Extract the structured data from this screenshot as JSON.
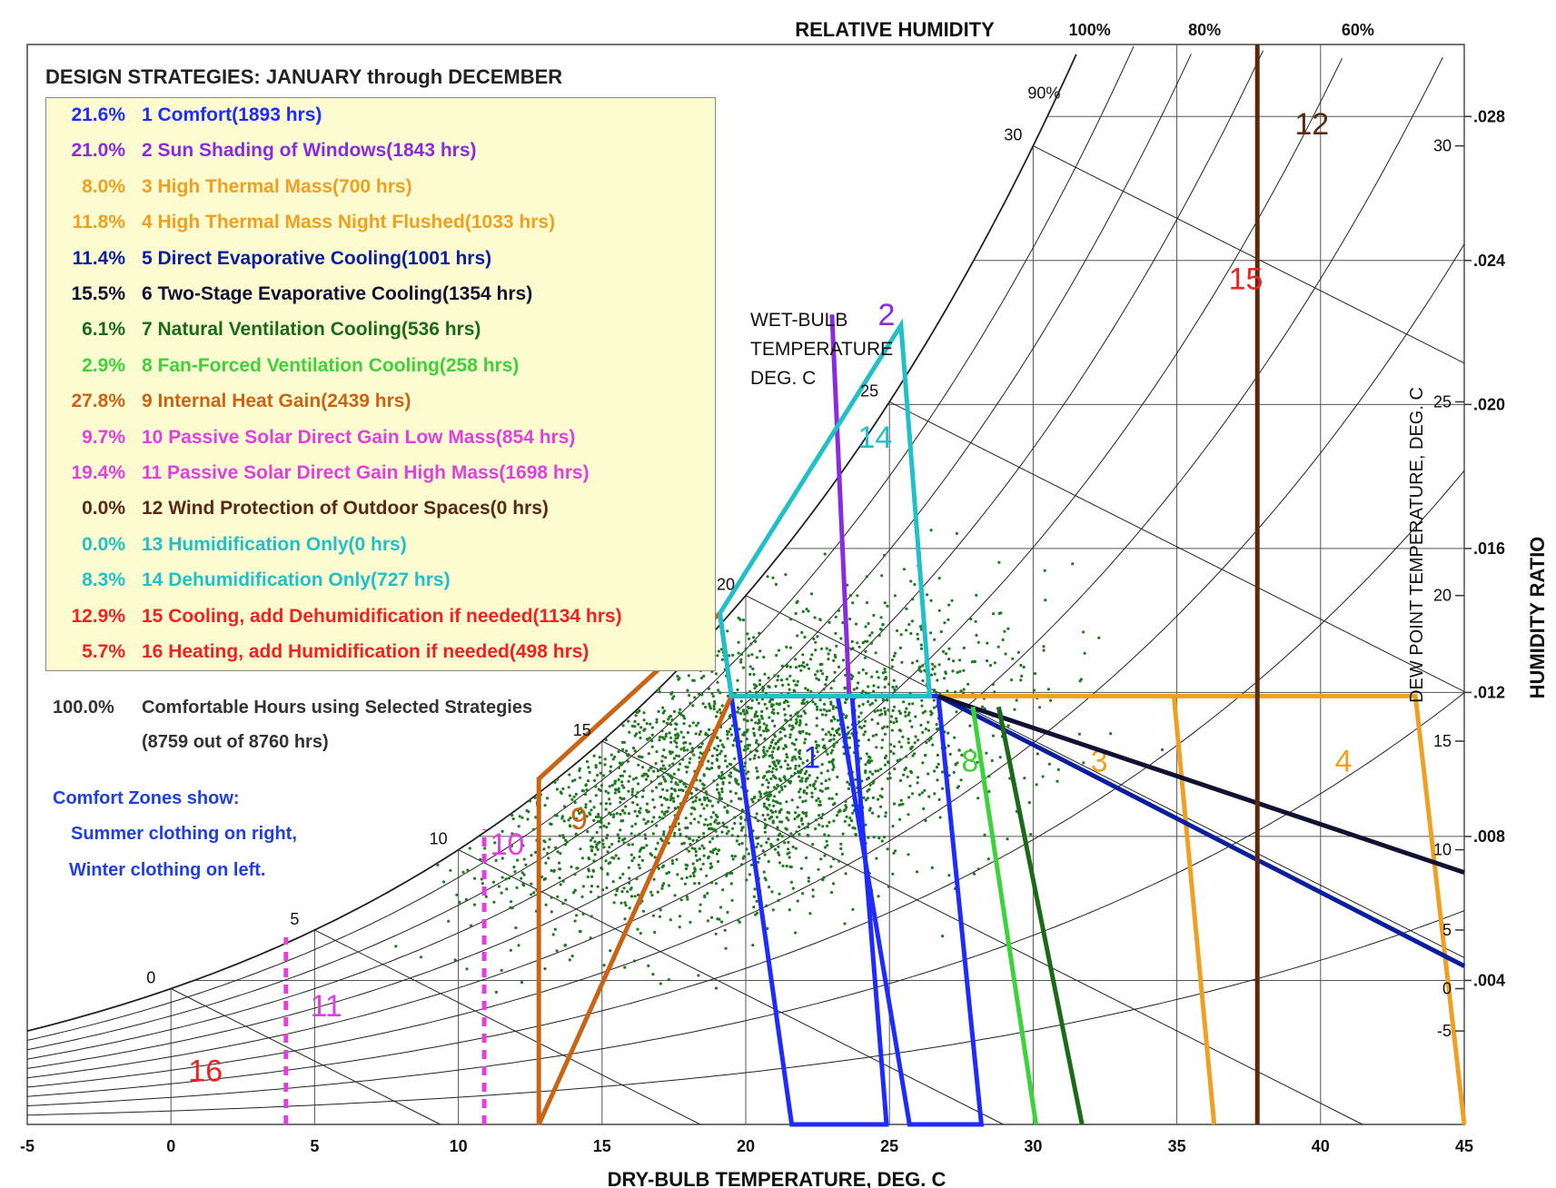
{
  "chart_data": {
    "type": "scatter",
    "subtype": "psychrometric-chart",
    "title": "DESIGN STRATEGIES:  JANUARY through DECEMBER",
    "xlabel": "DRY-BULB TEMPERATURE, DEG. C",
    "ylabel": "HUMIDITY RATIO",
    "y2label": "DEW POINT TEMPERATURE, DEG. C",
    "rh_label": "RELATIVE HUMIDITY",
    "wb_label_lines": [
      "WET-BULB",
      "TEMPERATURE",
      "DEG. C"
    ],
    "xlim": [
      -5,
      45
    ],
    "ylim": [
      0,
      0.03
    ],
    "x_ticks": [
      "-5",
      "0",
      "5",
      "10",
      "15",
      "20",
      "25",
      "30",
      "35",
      "40",
      "45"
    ],
    "y_ticks": [
      {
        "value": 0.004,
        "label": ".004"
      },
      {
        "value": 0.008,
        "label": ".008"
      },
      {
        "value": 0.012,
        "label": ".012"
      },
      {
        "value": 0.016,
        "label": ".016"
      },
      {
        "value": 0.02,
        "label": ".020"
      },
      {
        "value": 0.024,
        "label": ".024"
      },
      {
        "value": 0.028,
        "label": ".028"
      }
    ],
    "dew_point_ticks": [
      {
        "value": -5,
        "label": "-5"
      },
      {
        "value": 0,
        "label": "0"
      },
      {
        "value": 5,
        "label": "5"
      },
      {
        "value": 10,
        "label": "10"
      },
      {
        "value": 15,
        "label": "15"
      },
      {
        "value": 20,
        "label": "20"
      },
      {
        "value": 25,
        "label": "25"
      },
      {
        "value": 30,
        "label": "30"
      }
    ],
    "rh_curves": [
      {
        "rh": 100,
        "label": "100%"
      },
      {
        "rh": 90,
        "label": "90%"
      },
      {
        "rh": 80,
        "label": "80%"
      },
      {
        "rh": 70,
        "label": ""
      },
      {
        "rh": 60,
        "label": "60%"
      },
      {
        "rh": 50,
        "label": ""
      },
      {
        "rh": 40,
        "label": ""
      },
      {
        "rh": 30,
        "label": ""
      },
      {
        "rh": 20,
        "label": ""
      },
      {
        "rh": 10,
        "label": ""
      }
    ],
    "wb_ticks": [
      {
        "value": 0,
        "label": "0"
      },
      {
        "value": 5,
        "label": "5"
      },
      {
        "value": 10,
        "label": "10"
      },
      {
        "value": 15,
        "label": "15"
      },
      {
        "value": 20,
        "label": "20"
      },
      {
        "value": 25,
        "label": "25"
      },
      {
        "value": 30,
        "label": "30"
      }
    ],
    "grid": true,
    "scatter_color": "#1f7a1f",
    "zones": [
      {
        "id": 1,
        "label": "1",
        "color": "#1e2bff",
        "label_at": [
          22.3,
          0.0099
        ],
        "points": [
          [
            19.5,
            0.0119
          ],
          [
            23.7,
            0.0119
          ],
          [
            24.9,
            0.0
          ],
          [
            21.6,
            0.0
          ]
        ]
      },
      {
        "id": 1,
        "label": "",
        "color": "#1e2bff",
        "points": [
          [
            23.2,
            0.0119
          ],
          [
            26.7,
            0.0119
          ],
          [
            28.2,
            0.0
          ],
          [
            25.7,
            0.0
          ]
        ]
      },
      {
        "id": 2,
        "label": "2",
        "color": "#8a2be2",
        "label_at": [
          24.9,
          0.0222
        ],
        "points": [
          [
            23.0,
            0.0225
          ],
          [
            23.6,
            0.0119
          ]
        ]
      },
      {
        "id": 3,
        "label": "3",
        "color": "#f0a020",
        "label_at": [
          32.3,
          0.0098
        ],
        "points": [
          [
            26.7,
            0.0119
          ],
          [
            34.9,
            0.0119
          ],
          [
            36.3,
            0.0
          ]
        ]
      },
      {
        "id": 4,
        "label": "4",
        "color": "#f0a020",
        "label_at": [
          40.8,
          0.0098
        ],
        "points": [
          [
            34.9,
            0.0119
          ],
          [
            43.3,
            0.0119
          ],
          [
            45.0,
            0.0
          ]
        ]
      },
      {
        "id": 5,
        "label": "",
        "color": "#0a1fa0",
        "points": [
          [
            26.7,
            0.0119
          ],
          [
            45.0,
            0.0044
          ]
        ]
      },
      {
        "id": 6,
        "label": "",
        "color": "#111133",
        "points": [
          [
            26.7,
            0.0119
          ],
          [
            45.0,
            0.007
          ]
        ]
      },
      {
        "id": 7,
        "label": "",
        "color": "#1a6a1a",
        "points": [
          [
            28.8,
            0.0116
          ],
          [
            31.7,
            0.0
          ]
        ]
      },
      {
        "id": 8,
        "label": "8",
        "color": "#3cd23c",
        "label_at": [
          27.8,
          0.0098
        ],
        "points": [
          [
            27.9,
            0.0116
          ],
          [
            30.1,
            0.0
          ]
        ]
      },
      {
        "id": 9,
        "label": "9",
        "color": "#c86414",
        "label_at": [
          14.2,
          0.0082
        ],
        "points": [
          [
            12.8,
            0.0
          ],
          [
            12.8,
            0.0096
          ],
          [
            19.1,
            0.0142
          ],
          [
            19.5,
            0.0119
          ]
        ]
      },
      {
        "id": 10,
        "label": "10",
        "color": "#e040e0",
        "label_at": [
          11.7,
          0.0075
        ],
        "points": [
          [
            10.9,
            0.0
          ],
          [
            10.9,
            0.0082
          ]
        ]
      },
      {
        "id": 11,
        "label": "11",
        "color": "#e040e0",
        "label_at": [
          5.4,
          0.003
        ],
        "points": [
          [
            4.0,
            0.0
          ],
          [
            4.0,
            0.0052
          ]
        ]
      },
      {
        "id": 12,
        "label": "12",
        "color": "#5a2a10",
        "label_at": [
          39.7,
          0.0275
        ],
        "points": [
          [
            37.8,
            0.0
          ],
          [
            37.8,
            0.03
          ]
        ]
      },
      {
        "id": 14,
        "label": "14",
        "color": "#20c0c8",
        "label_at": [
          24.5,
          0.0188
        ],
        "points": [
          [
            19.1,
            0.0142
          ],
          [
            25.4,
            0.0222
          ],
          [
            26.4,
            0.0119
          ],
          [
            19.5,
            0.0119
          ]
        ]
      },
      {
        "id": 15,
        "label": "15",
        "color": "#ee2222",
        "label_at": [
          37.4,
          0.0232
        ],
        "points": []
      },
      {
        "id": 16,
        "label": "16",
        "color": "#ee2222",
        "label_at": [
          1.2,
          0.0012
        ],
        "points": []
      }
    ]
  },
  "legend": {
    "items": [
      {
        "pct": "21.6%",
        "label": "1  Comfort(1893 hrs)",
        "color": "#1e2bff"
      },
      {
        "pct": "21.0%",
        "label": "2  Sun Shading of Windows(1843 hrs)",
        "color": "#8a2be2"
      },
      {
        "pct": "8.0%",
        "label": "3  High Thermal Mass(700 hrs)",
        "color": "#f0a020"
      },
      {
        "pct": "11.8%",
        "label": "4  High Thermal Mass Night Flushed(1033 hrs)",
        "color": "#f0a020"
      },
      {
        "pct": "11.4%",
        "label": "5  Direct Evaporative Cooling(1001 hrs)",
        "color": "#0a1fa0"
      },
      {
        "pct": "15.5%",
        "label": "6  Two-Stage Evaporative Cooling(1354 hrs)",
        "color": "#111133"
      },
      {
        "pct": "6.1%",
        "label": "7  Natural Ventilation Cooling(536 hrs)",
        "color": "#1a6a1a"
      },
      {
        "pct": "2.9%",
        "label": "8  Fan-Forced Ventilation Cooling(258 hrs)",
        "color": "#3cd23c"
      },
      {
        "pct": "27.8%",
        "label": "9  Internal Heat Gain(2439 hrs)",
        "color": "#c86414"
      },
      {
        "pct": "9.7%",
        "label": "10  Passive Solar Direct Gain Low Mass(854 hrs)",
        "color": "#e040e0"
      },
      {
        "pct": "19.4%",
        "label": "11  Passive Solar Direct Gain High Mass(1698 hrs)",
        "color": "#e040e0"
      },
      {
        "pct": "0.0%",
        "label": "12  Wind Protection of Outdoor Spaces(0 hrs)",
        "color": "#5a2a10"
      },
      {
        "pct": "0.0%",
        "label": "13  Humidification Only(0 hrs)",
        "color": "#20c0c8"
      },
      {
        "pct": "8.3%",
        "label": "14  Dehumidification Only(727 hrs)",
        "color": "#20c0c8"
      },
      {
        "pct": "12.9%",
        "label": "15  Cooling, add Dehumidification if needed(1134 hrs)",
        "color": "#ee2222"
      },
      {
        "pct": "5.7%",
        "label": "16  Heating, add Humidification if needed(498 hrs)",
        "color": "#ee2222"
      }
    ]
  },
  "summary": {
    "pct": "100.0%",
    "line1": "Comfortable Hours using Selected Strategies",
    "line2": "(8759 out of 8760 hrs)"
  },
  "comfort_note": {
    "line1": "Comfort Zones show:",
    "line2": "Summer clothing on right,",
    "line3": "Winter clothing on left."
  }
}
